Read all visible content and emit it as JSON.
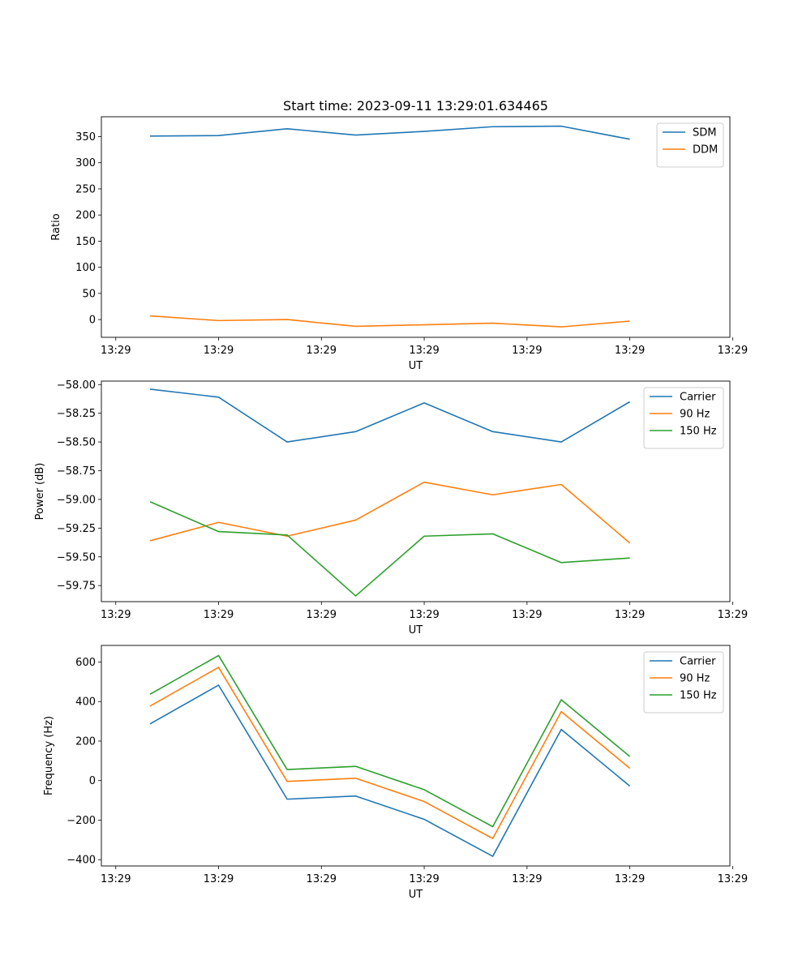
{
  "figure": {
    "title": "Start time: 2023-09-11 13:29:01.634465"
  },
  "chart_data": [
    {
      "type": "line",
      "title": "Start time: 2023-09-11 13:29:01.634465",
      "xlabel": "UT",
      "ylabel": "Ratio",
      "x": [
        1,
        2,
        3,
        4,
        5,
        6,
        7,
        8
      ],
      "xlim": [
        0.29,
        9.46
      ],
      "x_ticks": [
        0.5,
        2.0,
        3.5,
        5.0,
        6.5,
        8.0,
        9.5
      ],
      "x_tick_labels": [
        "13:29",
        "13:29",
        "13:29",
        "13:29",
        "13:29",
        "13:29",
        "13:29"
      ],
      "ylim": [
        -34,
        388
      ],
      "y_ticks": [
        0,
        50,
        100,
        150,
        200,
        250,
        300,
        350
      ],
      "y_tick_labels": [
        "0",
        "50",
        "100",
        "150",
        "200",
        "250",
        "300",
        "350"
      ],
      "legend": "top-right",
      "series": [
        {
          "name": "SDM",
          "color": "#1f77b4",
          "values": [
            351,
            352,
            365,
            353,
            360,
            369,
            370,
            345
          ]
        },
        {
          "name": "DDM",
          "color": "#ff7f0e",
          "values": [
            7,
            -2,
            0,
            -13,
            -10,
            -7,
            -14,
            -3
          ]
        }
      ]
    },
    {
      "type": "line",
      "title": "",
      "xlabel": "UT",
      "ylabel": "Power (dB)",
      "x": [
        1,
        2,
        3,
        4,
        5,
        6,
        7,
        8
      ],
      "xlim": [
        0.29,
        9.46
      ],
      "x_ticks": [
        0.5,
        2.0,
        3.5,
        5.0,
        6.5,
        8.0,
        9.5
      ],
      "x_tick_labels": [
        "13:29",
        "13:29",
        "13:29",
        "13:29",
        "13:29",
        "13:29",
        "13:29"
      ],
      "ylim": [
        -59.89,
        -57.97
      ],
      "y_ticks": [
        -59.75,
        -59.5,
        -59.25,
        -59.0,
        -58.75,
        -58.5,
        -58.25,
        -58.0
      ],
      "y_tick_labels": [
        "−59.75",
        "−59.50",
        "−59.25",
        "−59.00",
        "−58.75",
        "−58.50",
        "−58.25",
        "−58.00"
      ],
      "legend": "top-right",
      "series": [
        {
          "name": "Carrier",
          "color": "#1f77b4",
          "values": [
            -58.04,
            -58.11,
            -58.5,
            -58.41,
            -58.16,
            -58.41,
            -58.5,
            -58.15
          ]
        },
        {
          "name": "90 Hz",
          "color": "#ff7f0e",
          "values": [
            -59.36,
            -59.2,
            -59.32,
            -59.18,
            -58.85,
            -58.96,
            -58.87,
            -59.38
          ]
        },
        {
          "name": "150 Hz",
          "color": "#2ca02c",
          "values": [
            -59.02,
            -59.28,
            -59.31,
            -59.84,
            -59.32,
            -59.3,
            -59.55,
            -59.51
          ]
        }
      ]
    },
    {
      "type": "line",
      "title": "",
      "xlabel": "UT",
      "ylabel": "Frequency (Hz)",
      "x": [
        1,
        2,
        3,
        4,
        5,
        6,
        7,
        8
      ],
      "xlim": [
        0.29,
        9.46
      ],
      "x_ticks": [
        0.5,
        2.0,
        3.5,
        5.0,
        6.5,
        8.0,
        9.5
      ],
      "x_tick_labels": [
        "13:29",
        "13:29",
        "13:29",
        "13:29",
        "13:29",
        "13:29",
        "13:29"
      ],
      "ylim": [
        -432,
        684
      ],
      "y_ticks": [
        -400,
        -200,
        0,
        200,
        400,
        600
      ],
      "y_tick_labels": [
        "−400",
        "−200",
        "0",
        "200",
        "400",
        "600"
      ],
      "legend": "top-right",
      "series": [
        {
          "name": "Carrier",
          "color": "#1f77b4",
          "values": [
            287,
            483,
            -94,
            -78,
            -196,
            -383,
            259,
            -28
          ]
        },
        {
          "name": "90 Hz",
          "color": "#ff7f0e",
          "values": [
            377,
            573,
            -4,
            12,
            -106,
            -293,
            349,
            62
          ]
        },
        {
          "name": "150 Hz",
          "color": "#2ca02c",
          "values": [
            437,
            633,
            56,
            72,
            -46,
            -233,
            409,
            122
          ]
        }
      ]
    }
  ]
}
